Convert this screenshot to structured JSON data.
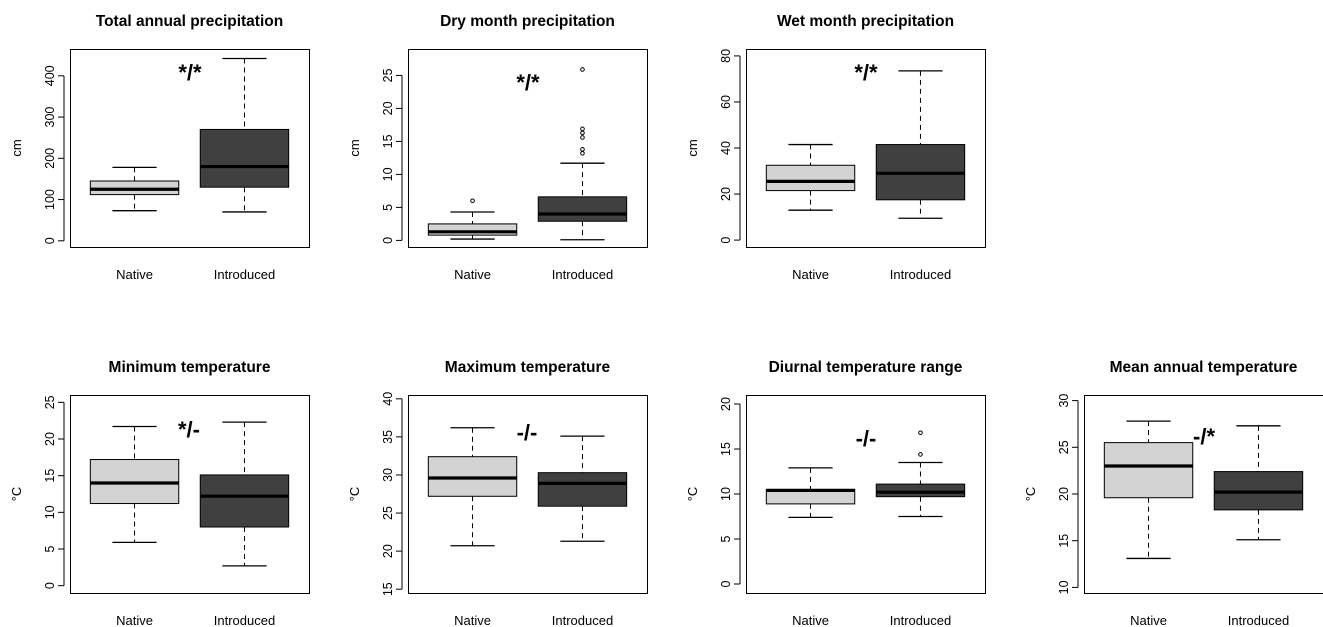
{
  "colors": {
    "native_fill": "#d3d3d3",
    "introduced_fill": "#404040",
    "outline": "#000000"
  },
  "chart_data": [
    {
      "type": "boxplot",
      "title": "Total annual precipitation",
      "ylabel": "cm",
      "ylim": [
        -15,
        465
      ],
      "yticks": [
        0,
        100,
        200,
        300,
        400
      ],
      "categories": [
        "Native",
        "Introduced"
      ],
      "significance": "*/*",
      "boxes": [
        {
          "min": 73,
          "q1": 112,
          "median": 125,
          "q3": 145,
          "max": 178,
          "outliers": []
        },
        {
          "min": 70,
          "q1": 130,
          "median": 180,
          "q3": 270,
          "max": 442,
          "outliers": []
        }
      ]
    },
    {
      "type": "boxplot",
      "title": "Dry month precipitation",
      "ylabel": "cm",
      "ylim": [
        -1,
        29
      ],
      "yticks": [
        0,
        5,
        10,
        15,
        20,
        25
      ],
      "categories": [
        "Native",
        "Introduced"
      ],
      "significance": "*/*",
      "boxes": [
        {
          "min": 0.2,
          "q1": 0.8,
          "median": 1.3,
          "q3": 2.5,
          "max": 4.3,
          "outliers": [
            6.0
          ]
        },
        {
          "min": 0.1,
          "q1": 2.9,
          "median": 4.0,
          "q3": 6.6,
          "max": 11.7,
          "outliers": [
            13.2,
            13.8,
            15.6,
            16.3,
            16.9,
            25.9
          ]
        }
      ]
    },
    {
      "type": "boxplot",
      "title": "Wet month precipitation",
      "ylabel": "cm",
      "ylim": [
        -3,
        83
      ],
      "yticks": [
        0,
        20,
        40,
        60,
        80
      ],
      "categories": [
        "Native",
        "Introduced"
      ],
      "significance": "*/*",
      "boxes": [
        {
          "min": 13,
          "q1": 21.5,
          "median": 25.5,
          "q3": 32.5,
          "max": 41.5,
          "outliers": []
        },
        {
          "min": 9.5,
          "q1": 17.5,
          "median": 29,
          "q3": 41.5,
          "max": 73.5,
          "outliers": []
        }
      ]
    },
    {
      "type": "boxplot",
      "title": "Minimum temperature",
      "ylabel": "°C",
      "ylim": [
        -1,
        26
      ],
      "yticks": [
        0,
        5,
        10,
        15,
        20,
        25
      ],
      "categories": [
        "Native",
        "Introduced"
      ],
      "significance": "*/-",
      "boxes": [
        {
          "min": 5.9,
          "q1": 11.2,
          "median": 14.0,
          "q3": 17.2,
          "max": 21.7,
          "outliers": []
        },
        {
          "min": 2.7,
          "q1": 8.0,
          "median": 12.2,
          "q3": 15.1,
          "max": 22.3,
          "outliers": []
        }
      ]
    },
    {
      "type": "boxplot",
      "title": "Maximum temperature",
      "ylabel": "°C",
      "ylim": [
        14.5,
        40.5
      ],
      "yticks": [
        15,
        20,
        25,
        30,
        35,
        40
      ],
      "categories": [
        "Native",
        "Introduced"
      ],
      "significance": "-/-",
      "boxes": [
        {
          "min": 20.7,
          "q1": 27.2,
          "median": 29.6,
          "q3": 32.4,
          "max": 36.2,
          "outliers": []
        },
        {
          "min": 21.3,
          "q1": 25.9,
          "median": 28.9,
          "q3": 30.3,
          "max": 35.1,
          "outliers": []
        }
      ]
    },
    {
      "type": "boxplot",
      "title": "Diurnal temperature range",
      "ylabel": "°C",
      "ylim": [
        -1,
        21
      ],
      "yticks": [
        0,
        5,
        10,
        15,
        20
      ],
      "categories": [
        "Native",
        "Introduced"
      ],
      "significance": "-/-",
      "boxes": [
        {
          "min": 7.4,
          "q1": 8.9,
          "median": 10.4,
          "q3": 10.5,
          "max": 12.9,
          "outliers": []
        },
        {
          "min": 7.5,
          "q1": 9.7,
          "median": 10.2,
          "q3": 11.1,
          "max": 13.5,
          "outliers": [
            14.4,
            16.8
          ]
        }
      ]
    },
    {
      "type": "boxplot",
      "title": "Mean annual temperature",
      "ylabel": "°C",
      "ylim": [
        9.4,
        30.6
      ],
      "yticks": [
        10,
        15,
        20,
        25,
        30
      ],
      "categories": [
        "Native",
        "Introduced"
      ],
      "significance": "-/*",
      "boxes": [
        {
          "min": 13.1,
          "q1": 19.6,
          "median": 23.0,
          "q3": 25.5,
          "max": 27.8,
          "outliers": []
        },
        {
          "min": 15.1,
          "q1": 18.3,
          "median": 20.2,
          "q3": 22.4,
          "max": 27.3,
          "outliers": []
        }
      ]
    }
  ]
}
